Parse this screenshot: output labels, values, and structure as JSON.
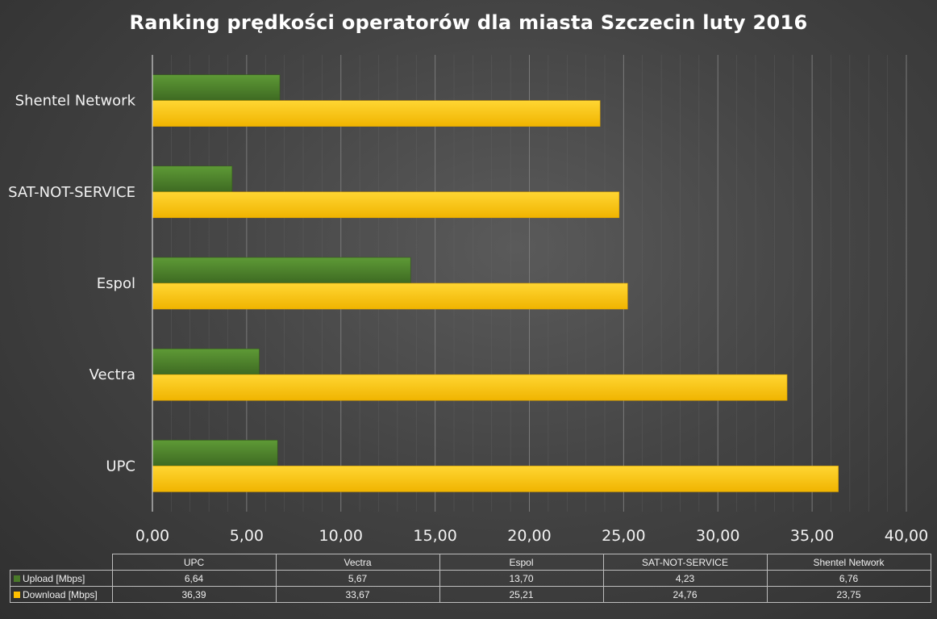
{
  "chart_data": {
    "type": "bar",
    "orientation": "horizontal",
    "title": "Ranking prędkości operatorów dla miasta Szczecin luty 2016",
    "categories": [
      "UPC",
      "Vectra",
      "Espol",
      "SAT-NOT-SERVICE",
      "Shentel Network"
    ],
    "series": [
      {
        "name": "Upload [Mbps]",
        "values": [
          6.64,
          5.67,
          13.7,
          4.23,
          6.76
        ],
        "color": "#4a7a2a"
      },
      {
        "name": "Download [Mbps]",
        "values": [
          36.39,
          33.67,
          25.21,
          24.76,
          23.75
        ],
        "color": "#ffc000"
      }
    ],
    "xlim": [
      0,
      40
    ],
    "x_ticks": [
      0,
      5,
      10,
      15,
      20,
      25,
      30,
      35,
      40
    ],
    "x_tick_labels": [
      "0,00",
      "5,00",
      "10,00",
      "15,00",
      "20,00",
      "25,00",
      "30,00",
      "35,00",
      "40,00"
    ],
    "grid": true,
    "legend": "data-table",
    "table": {
      "header": [
        "UPC",
        "Vectra",
        "Espol",
        "SAT-NOT-SERVICE",
        "Shentel Network"
      ],
      "rows": [
        {
          "label": "Upload [Mbps]",
          "cells": [
            "6,64",
            "5,67",
            "13,70",
            "4,23",
            "6,76"
          ]
        },
        {
          "label": "Download [Mbps]",
          "cells": [
            "36,39",
            "33,67",
            "25,21",
            "24,76",
            "23,75"
          ]
        }
      ]
    }
  }
}
